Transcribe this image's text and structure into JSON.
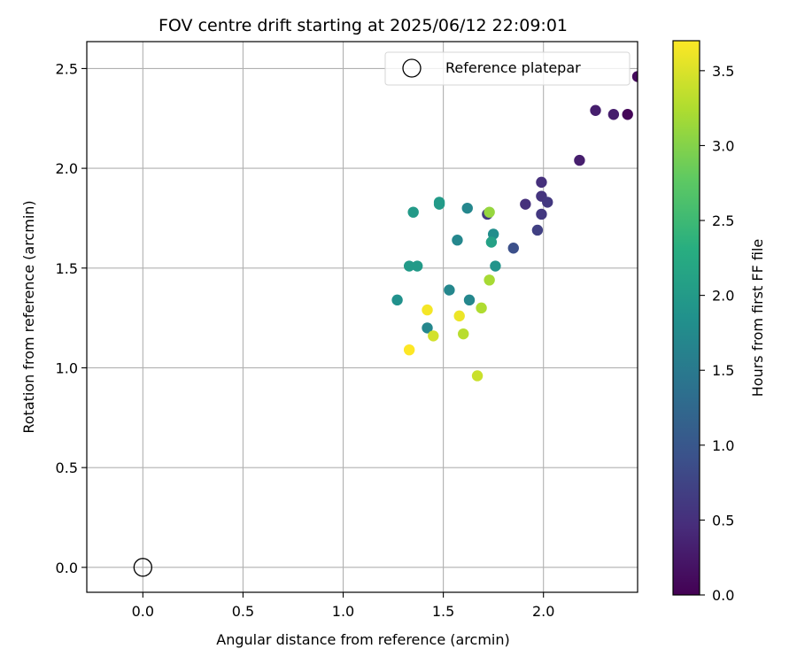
{
  "chart_data": {
    "type": "scatter",
    "title": "FOV centre drift starting at 2025/06/12 22:09:01",
    "xlabel": "Angular distance from reference (arcmin)",
    "ylabel": "Rotation from reference (arcmin)",
    "xlim": [
      -0.28,
      2.47
    ],
    "ylim": [
      -0.125,
      2.635
    ],
    "xticks": [
      0.0,
      0.5,
      1.0,
      1.5,
      2.0
    ],
    "yticks": [
      0.0,
      0.5,
      1.0,
      1.5,
      2.0,
      2.5
    ],
    "grid": true,
    "legend": {
      "position": "top-right",
      "entries": [
        "Reference platepar"
      ]
    },
    "reference_point": {
      "x": 0.0,
      "y": 0.0,
      "label": "Reference platepar"
    },
    "colorbar": {
      "label": "Hours from first FF file",
      "min": 0.0,
      "max": 3.7,
      "ticks": [
        0.0,
        0.5,
        1.0,
        1.5,
        2.0,
        2.5,
        3.0,
        3.5
      ],
      "colormap": "viridis"
    },
    "points": [
      {
        "x": 2.47,
        "y": 2.46,
        "hours": 0.1
      },
      {
        "x": 2.42,
        "y": 2.27,
        "hours": 0.05
      },
      {
        "x": 2.35,
        "y": 2.27,
        "hours": 0.3
      },
      {
        "x": 2.26,
        "y": 2.29,
        "hours": 0.3
      },
      {
        "x": 2.18,
        "y": 2.04,
        "hours": 0.3
      },
      {
        "x": 1.99,
        "y": 1.93,
        "hours": 0.5
      },
      {
        "x": 1.99,
        "y": 1.86,
        "hours": 0.55
      },
      {
        "x": 2.02,
        "y": 1.83,
        "hours": 0.6
      },
      {
        "x": 1.91,
        "y": 1.82,
        "hours": 0.5
      },
      {
        "x": 1.99,
        "y": 1.77,
        "hours": 0.6
      },
      {
        "x": 1.97,
        "y": 1.69,
        "hours": 0.7
      },
      {
        "x": 1.85,
        "y": 1.6,
        "hours": 0.9
      },
      {
        "x": 1.72,
        "y": 1.77,
        "hours": 0.6
      },
      {
        "x": 1.73,
        "y": 1.78,
        "hours": 3.1
      },
      {
        "x": 1.75,
        "y": 1.67,
        "hours": 1.8
      },
      {
        "x": 1.74,
        "y": 1.63,
        "hours": 2.1
      },
      {
        "x": 1.76,
        "y": 1.51,
        "hours": 1.9
      },
      {
        "x": 1.73,
        "y": 1.44,
        "hours": 3.2
      },
      {
        "x": 1.62,
        "y": 1.8,
        "hours": 1.7
      },
      {
        "x": 1.57,
        "y": 1.64,
        "hours": 1.7
      },
      {
        "x": 1.48,
        "y": 1.83,
        "hours": 2.0
      },
      {
        "x": 1.48,
        "y": 1.82,
        "hours": 2.0
      },
      {
        "x": 1.35,
        "y": 1.78,
        "hours": 2.0
      },
      {
        "x": 1.33,
        "y": 1.51,
        "hours": 2.0
      },
      {
        "x": 1.37,
        "y": 1.51,
        "hours": 2.0
      },
      {
        "x": 1.53,
        "y": 1.39,
        "hours": 1.7
      },
      {
        "x": 1.63,
        "y": 1.34,
        "hours": 1.7
      },
      {
        "x": 1.27,
        "y": 1.34,
        "hours": 1.85
      },
      {
        "x": 1.69,
        "y": 1.3,
        "hours": 3.25
      },
      {
        "x": 1.42,
        "y": 1.29,
        "hours": 3.65
      },
      {
        "x": 1.58,
        "y": 1.26,
        "hours": 3.6
      },
      {
        "x": 1.42,
        "y": 1.2,
        "hours": 1.7
      },
      {
        "x": 1.6,
        "y": 1.17,
        "hours": 3.3
      },
      {
        "x": 1.45,
        "y": 1.16,
        "hours": 3.45
      },
      {
        "x": 1.33,
        "y": 1.09,
        "hours": 3.7
      },
      {
        "x": 1.67,
        "y": 0.96,
        "hours": 3.4
      }
    ]
  }
}
